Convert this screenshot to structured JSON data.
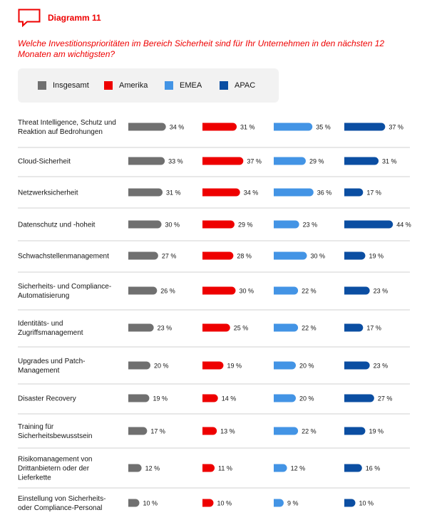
{
  "header": {
    "figure_label": "Diagramm 11"
  },
  "question": "Welche Investitionsprioritäten im Bereich Sicherheit sind für Ihr Unternehmen in den nächsten 12 Monaten am wichtigsten?",
  "chart_data": {
    "type": "bar",
    "orientation": "horizontal",
    "value_suffix": " %",
    "legend_placement": "top",
    "grid": false,
    "categories": [
      "Threat Intelligence, Schutz und Reaktion auf Bedrohungen",
      "Cloud-Sicherheit",
      "Netzwerksicherheit",
      "Datenschutz und -hoheit",
      "Schwachstellenmanagement",
      "Sicherheits- und Compliance-Automatisierung",
      "Identitäts- und Zugriffsmanagement",
      "Upgrades und Patch-Management",
      "Disaster Recovery",
      "Training für Sicherheitsbewusstsein",
      "Risikomanagement von Drittanbietern oder der Lieferkette",
      "Einstellung von Sicherheits- oder Compliance-Personal"
    ],
    "category_lines": [
      [
        "Threat Intelligence, Schutz und",
        "Reaktion auf Bedrohungen"
      ],
      [
        "Cloud-Sicherheit"
      ],
      [
        "Netzwerksicherheit"
      ],
      [
        "Datenschutz und -hoheit"
      ],
      [
        "Schwachstellenmanagement"
      ],
      [
        "Sicherheits- und Compliance-",
        "Automatisierung"
      ],
      [
        "Identitäts- und",
        "Zugriffsmanagement"
      ],
      [
        "Upgrades und Patch-",
        "Management"
      ],
      [
        "Disaster Recovery"
      ],
      [
        "Training für",
        "Sicherheitsbewusstsein"
      ],
      [
        "Risikomanagement von",
        "Drittanbietern oder der",
        "Lieferkette"
      ],
      [
        "Einstellung von Sicherheits-",
        "oder Compliance-Personal"
      ]
    ],
    "series": [
      {
        "name": "Insgesamt",
        "color": "#707070",
        "values": [
          34,
          33,
          31,
          30,
          27,
          26,
          23,
          20,
          19,
          17,
          12,
          10
        ]
      },
      {
        "name": "Amerika",
        "color": "#ee0000",
        "values": [
          31,
          37,
          34,
          29,
          28,
          30,
          25,
          19,
          14,
          13,
          11,
          10
        ]
      },
      {
        "name": "EMEA",
        "color": "#4394e5",
        "values": [
          35,
          29,
          36,
          23,
          30,
          22,
          22,
          20,
          20,
          22,
          12,
          9
        ]
      },
      {
        "name": "APAC",
        "color": "#0b4ea2",
        "values": [
          37,
          31,
          17,
          44,
          19,
          23,
          17,
          23,
          27,
          19,
          16,
          10
        ]
      }
    ]
  },
  "colors": {
    "accent": "#ee0000",
    "legend_bg": "#f2f2f2",
    "divider": "#d2d2d2"
  },
  "icons": {
    "header_icon": "chat-bubble-icon"
  }
}
